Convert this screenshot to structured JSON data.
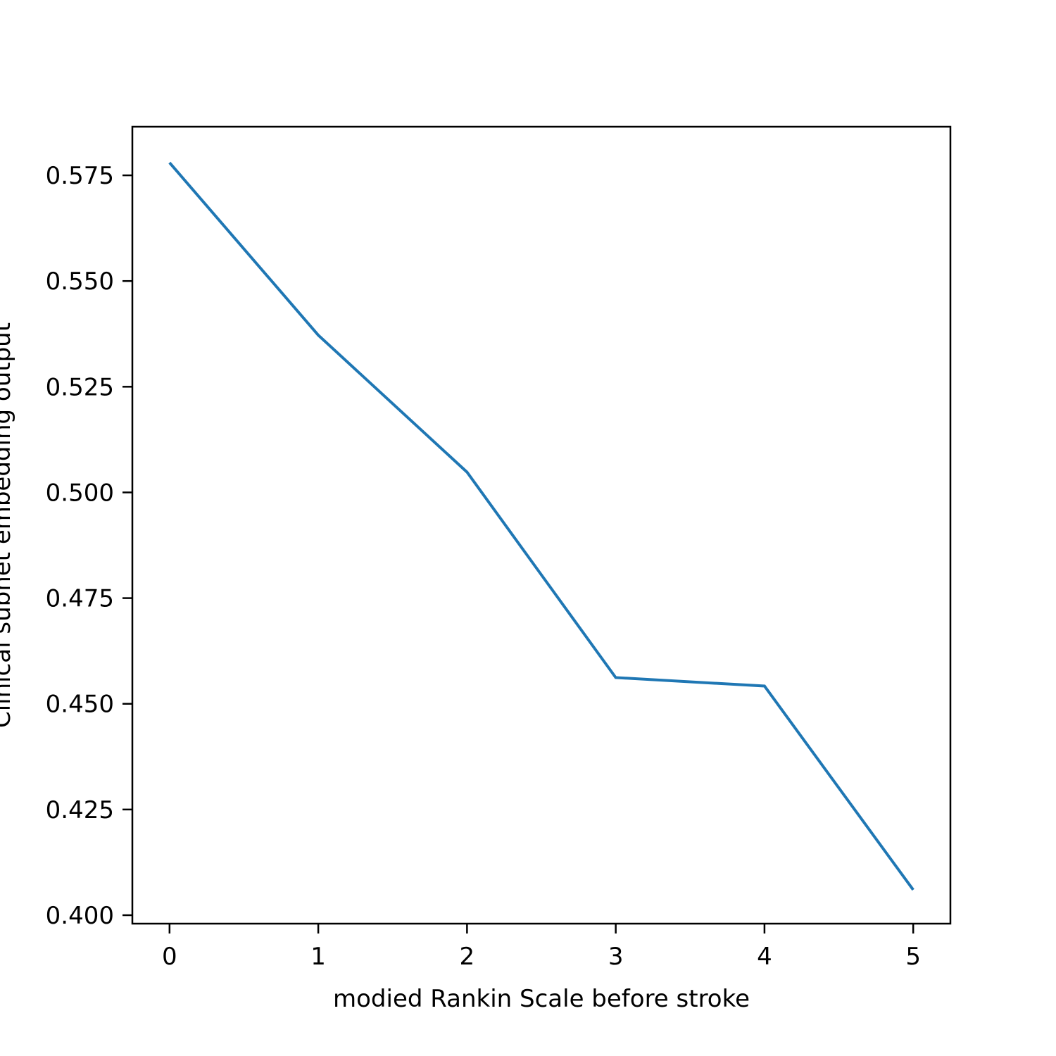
{
  "chart_data": {
    "type": "line",
    "title": "",
    "xlabel": "modied Rankin Scale before stroke",
    "ylabel": "Clinical subnet embedding output",
    "x": [
      0,
      1,
      2,
      3,
      4,
      5
    ],
    "series": [
      {
        "values": [
          0.578,
          0.5372,
          0.5048,
          0.4562,
          0.4542,
          0.406
        ],
        "color": "#1f77b4"
      }
    ],
    "xlim": [
      -0.25,
      5.25
    ],
    "ylim": [
      0.398,
      0.5865
    ],
    "xticks": [
      0,
      1,
      2,
      3,
      4,
      5
    ],
    "xtick_labels": [
      "0",
      "1",
      "2",
      "3",
      "4",
      "5"
    ],
    "yticks": [
      0.4,
      0.425,
      0.45,
      0.475,
      0.5,
      0.525,
      0.55,
      0.575
    ],
    "ytick_labels": [
      "0.400",
      "0.425",
      "0.450",
      "0.475",
      "0.500",
      "0.525",
      "0.550",
      "0.575"
    ],
    "grid": false,
    "legend": "none"
  }
}
